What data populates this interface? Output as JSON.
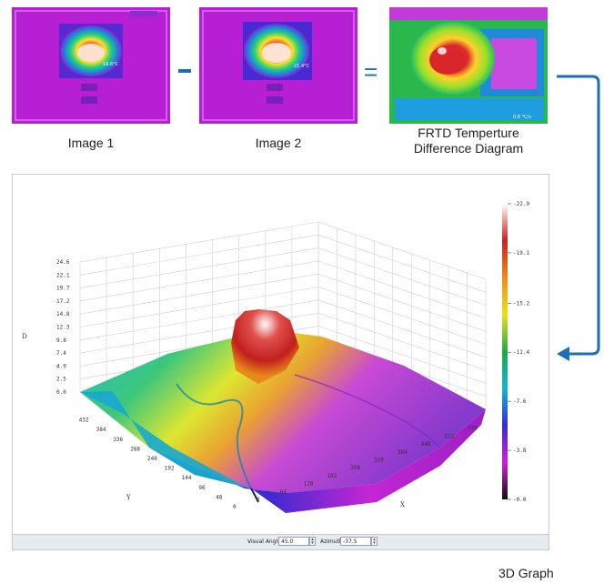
{
  "captions": {
    "image1": "Image 1",
    "image2": "Image 2",
    "frtd_line1": "FRTD Temperture",
    "frtd_line2": "Difference Diagram",
    "graph": "3D Graph"
  },
  "operators": {
    "minus": "−",
    "equals": "="
  },
  "thumbs": {
    "image1_readout": "19.6°C",
    "image2_readout": "21.4°C",
    "frtd_readout": "0.8 °C/s"
  },
  "chart_data": {
    "type": "surface",
    "zlabel": "D",
    "xlabel": "X",
    "ylabel": "Y",
    "z_ticks": [
      "0.0",
      "2.5",
      "4.9",
      "7.4",
      "9.8",
      "12.3",
      "14.8",
      "17.2",
      "19.7",
      "22.1",
      "24.6"
    ],
    "x_ticks": [
      "0",
      "64",
      "128",
      "192",
      "256",
      "320",
      "384",
      "448",
      "512",
      "576"
    ],
    "y_ticks": [
      "0",
      "48",
      "96",
      "144",
      "192",
      "240",
      "288",
      "336",
      "384",
      "432"
    ],
    "colorbar_ticks": [
      "0.0",
      "3.8",
      "7.6",
      "11.4",
      "15.2",
      "19.1",
      "22.9"
    ],
    "colorbar_range": [
      0.0,
      22.9
    ],
    "colorbar_colors": [
      "#101010",
      "#cf1fd6",
      "#3b2bd0",
      "#11b7cf",
      "#1ea84a",
      "#e8e31b",
      "#f08a1b",
      "#c8201f",
      "#ffffff"
    ],
    "controls": {
      "visual_angle_label": "Visual Angle",
      "visual_angle_value": "45.0",
      "azimuth_label": "Azimuth",
      "azimuth_value": "-37.5"
    }
  }
}
